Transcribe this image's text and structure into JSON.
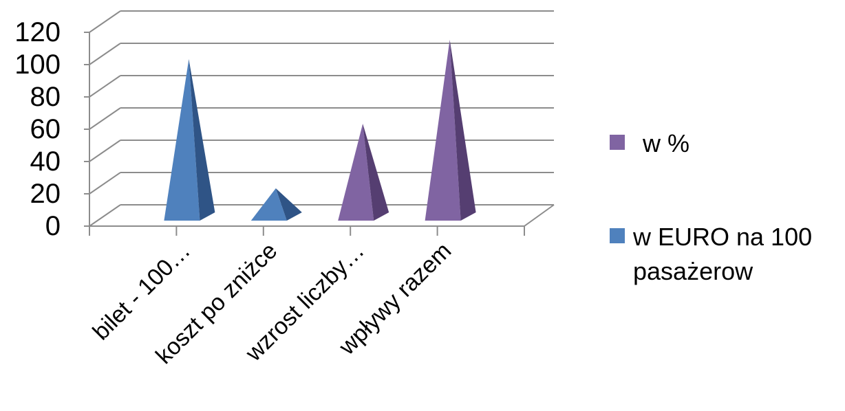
{
  "chart_data": {
    "type": "bar",
    "style": "3d-pyramid",
    "categories": [
      "bilet - 100…",
      "koszt po zniżce",
      "wzrost liczby…",
      "wpływy razem"
    ],
    "series": [
      {
        "name": "w EURO na 100 pasażerow",
        "color": "#4F81BD",
        "values": [
          100,
          20,
          null,
          null
        ]
      },
      {
        "name": "w %",
        "color": "#8064A2",
        "values": [
          null,
          null,
          60,
          112
        ]
      }
    ],
    "yticks": [
      "0",
      "20",
      "40",
      "60",
      "80",
      "100",
      "120"
    ],
    "ylim": [
      0,
      120
    ],
    "grid": true,
    "legend_position": "right",
    "legend": [
      {
        "label": "w %",
        "color": "#8064A2"
      },
      {
        "label": "w EURO na 100 pasażerow",
        "color": "#4F81BD"
      }
    ]
  }
}
